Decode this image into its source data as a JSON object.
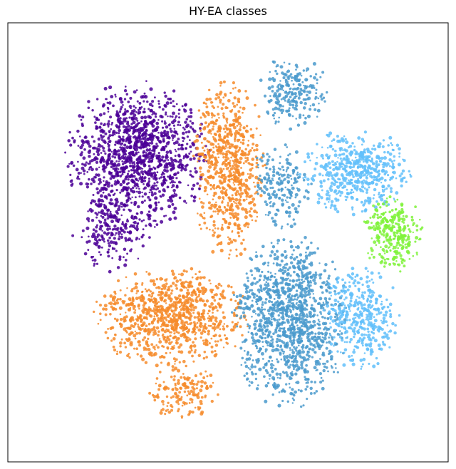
{
  "chart_data": {
    "type": "scatter",
    "title": "HY-EA classes",
    "xlabel": "",
    "ylabel": "",
    "axes_ticks": false,
    "grid": false,
    "legend": "none",
    "series": [
      {
        "color": "#4b0096",
        "clusters": [
          {
            "cx": 0.295,
            "cy": 0.695,
            "rx": 0.165,
            "ry": 0.175,
            "density": 1.0
          },
          {
            "cx": 0.235,
            "cy": 0.52,
            "rx": 0.09,
            "ry": 0.09,
            "density": 0.5
          }
        ]
      },
      {
        "color": "#f68b2a",
        "clusters": [
          {
            "cx": 0.5,
            "cy": 0.67,
            "rx": 0.085,
            "ry": 0.21,
            "density": 0.9
          },
          {
            "cx": 0.37,
            "cy": 0.33,
            "rx": 0.18,
            "ry": 0.115,
            "density": 1.0
          },
          {
            "cx": 0.4,
            "cy": 0.16,
            "rx": 0.08,
            "ry": 0.07,
            "density": 0.6
          }
        ]
      },
      {
        "color": "#4a9acd",
        "clusters": [
          {
            "cx": 0.645,
            "cy": 0.84,
            "rx": 0.085,
            "ry": 0.085,
            "density": 0.7
          },
          {
            "cx": 0.62,
            "cy": 0.63,
            "rx": 0.07,
            "ry": 0.1,
            "density": 0.6
          },
          {
            "cx": 0.64,
            "cy": 0.32,
            "rx": 0.135,
            "ry": 0.2,
            "density": 1.0
          }
        ]
      },
      {
        "color": "#61c0fa",
        "clusters": [
          {
            "cx": 0.79,
            "cy": 0.66,
            "rx": 0.13,
            "ry": 0.1,
            "density": 0.9
          },
          {
            "cx": 0.8,
            "cy": 0.33,
            "rx": 0.09,
            "ry": 0.12,
            "density": 0.8
          }
        ]
      },
      {
        "color": "#7ff23a",
        "clusters": [
          {
            "cx": 0.875,
            "cy": 0.52,
            "rx": 0.07,
            "ry": 0.09,
            "density": 1.0
          }
        ]
      }
    ]
  }
}
